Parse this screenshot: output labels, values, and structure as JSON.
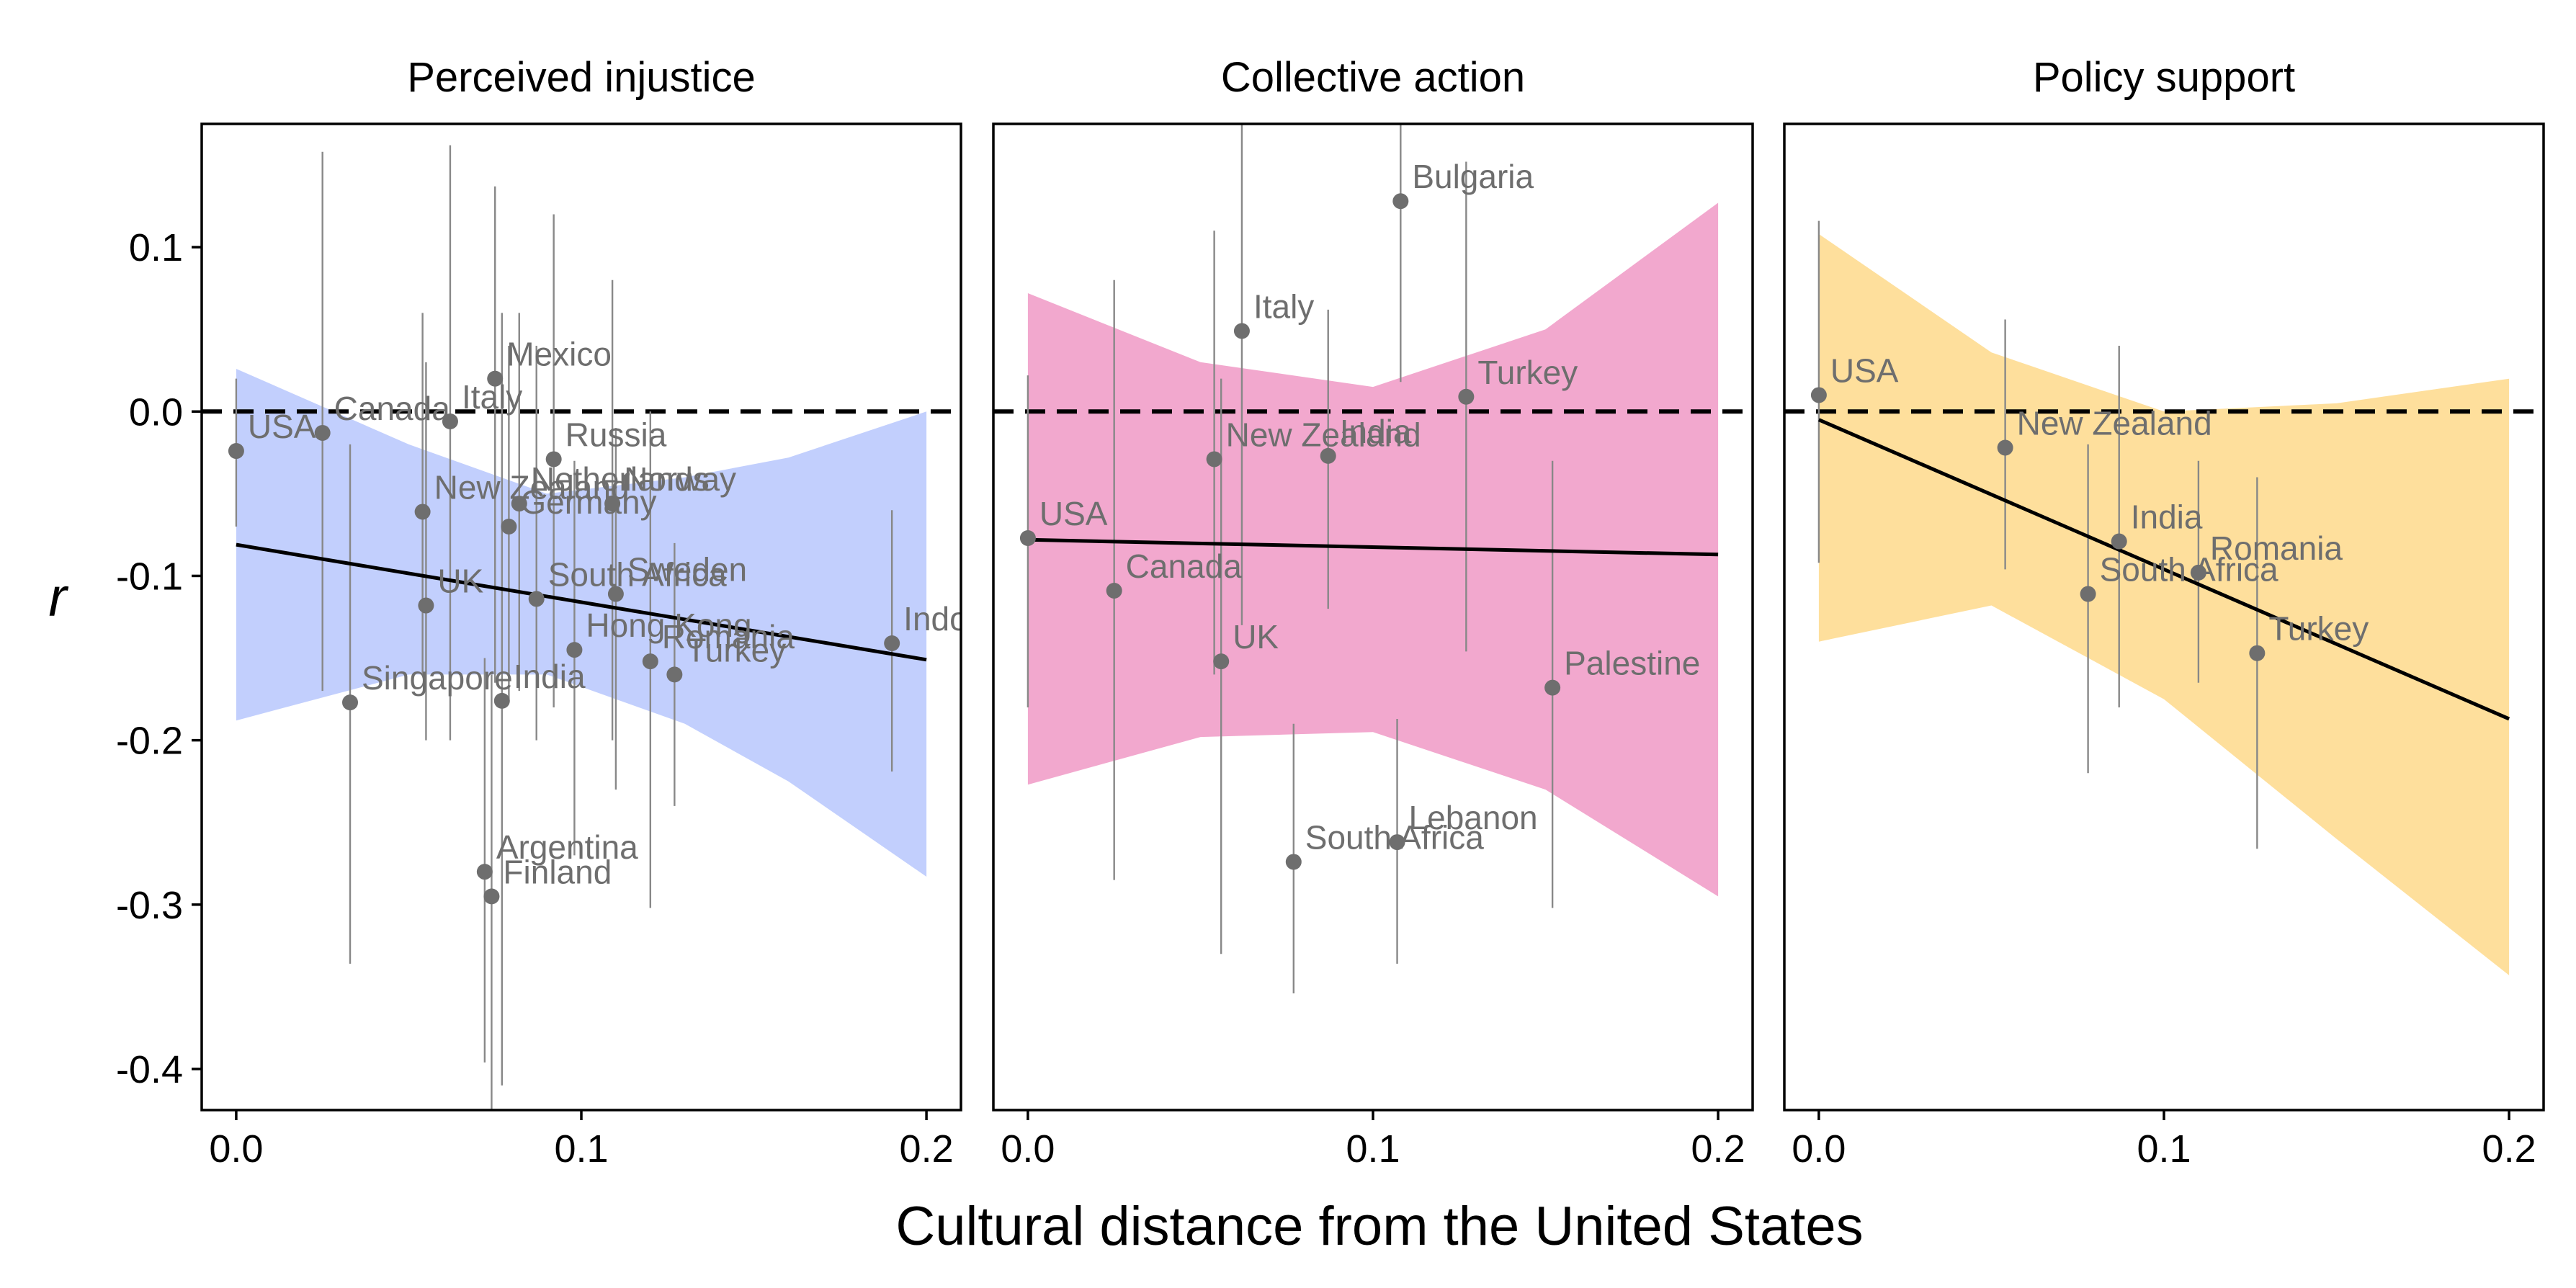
{
  "chart_data": {
    "type": "scatter",
    "xlabel": "Cultural distance from the United States",
    "ylabel": "r",
    "xlim": [
      -0.01,
      0.21
    ],
    "ylim": [
      -0.425,
      0.175
    ],
    "x_ticks": [
      0.0,
      0.1,
      0.2
    ],
    "x_tick_labels": [
      "0.0",
      "0.1",
      "0.2"
    ],
    "y_ticks": [
      0.1,
      0.0,
      -0.1,
      -0.2,
      -0.3,
      -0.4
    ],
    "y_tick_labels": [
      "0.1",
      "0.0",
      "-0.1",
      "-0.2",
      "-0.3",
      "-0.4"
    ],
    "reference_line": 0,
    "grid": false,
    "panels": [
      {
        "title": "Perceived injustice",
        "ribbon_color": "#c2cffd",
        "fit": {
          "x": [
            0,
            0.2
          ],
          "y": [
            -0.081,
            -0.151
          ]
        },
        "ribbon": [
          {
            "x": 0.0,
            "lo": -0.188,
            "hi": 0.026
          },
          {
            "x": 0.05,
            "lo": -0.16,
            "hi": -0.02
          },
          {
            "x": 0.09,
            "lo": -0.16,
            "hi": -0.05
          },
          {
            "x": 0.13,
            "lo": -0.19,
            "hi": -0.04
          },
          {
            "x": 0.16,
            "lo": -0.225,
            "hi": -0.028
          },
          {
            "x": 0.2,
            "lo": -0.283,
            "hi": 0.0
          }
        ],
        "points": [
          {
            "label": "USA",
            "x": 0.0,
            "y": -0.024,
            "lo": -0.07,
            "hi": 0.02
          },
          {
            "label": "Canada",
            "x": 0.025,
            "y": -0.013,
            "lo": -0.17,
            "hi": 0.158
          },
          {
            "label": "Singapore",
            "x": 0.033,
            "y": -0.177,
            "lo": -0.336,
            "hi": -0.02
          },
          {
            "label": "Italy",
            "x": 0.062,
            "y": -0.006,
            "lo": -0.2,
            "hi": 0.162
          },
          {
            "label": "New Zealand",
            "x": 0.054,
            "y": -0.061,
            "lo": -0.16,
            "hi": 0.06
          },
          {
            "label": "UK",
            "x": 0.055,
            "y": -0.118,
            "lo": -0.2,
            "hi": 0.03
          },
          {
            "label": "Mexico",
            "x": 0.075,
            "y": 0.02,
            "lo": -0.165,
            "hi": 0.137
          },
          {
            "label": "Germany",
            "x": 0.079,
            "y": -0.07,
            "lo": -0.175,
            "hi": 0.04
          },
          {
            "label": "Netherlands",
            "x": 0.082,
            "y": -0.056,
            "lo": -0.17,
            "hi": 0.06
          },
          {
            "label": "India",
            "x": 0.077,
            "y": -0.176,
            "lo": -0.41,
            "hi": 0.06
          },
          {
            "label": "South Africa",
            "x": 0.087,
            "y": -0.114,
            "lo": -0.2,
            "hi": 0.04
          },
          {
            "label": "Argentina",
            "x": 0.072,
            "y": -0.28,
            "lo": -0.396,
            "hi": -0.15
          },
          {
            "label": "Finland",
            "x": 0.074,
            "y": -0.295,
            "lo": -0.43,
            "hi": -0.16
          },
          {
            "label": "Russia",
            "x": 0.092,
            "y": -0.029,
            "lo": -0.18,
            "hi": 0.12
          },
          {
            "label": "Hong Kong",
            "x": 0.098,
            "y": -0.145,
            "lo": -0.27,
            "hi": -0.03
          },
          {
            "label": "Norway",
            "x": 0.109,
            "y": -0.056,
            "lo": -0.2,
            "hi": 0.08
          },
          {
            "label": "Sweden",
            "x": 0.11,
            "y": -0.111,
            "lo": -0.23,
            "hi": -0.01
          },
          {
            "label": "Romania",
            "x": 0.12,
            "y": -0.152,
            "lo": -0.302,
            "hi": 0.0
          },
          {
            "label": "Turkey",
            "x": 0.127,
            "y": -0.16,
            "lo": -0.24,
            "hi": -0.08
          },
          {
            "label": "Indonesia",
            "x": 0.19,
            "y": -0.141,
            "lo": -0.219,
            "hi": -0.06
          }
        ]
      },
      {
        "title": "Collective action",
        "ribbon_color": "#f2a8ce",
        "fit": {
          "x": [
            0,
            0.2
          ],
          "y": [
            -0.078,
            -0.087
          ]
        },
        "ribbon": [
          {
            "x": 0.0,
            "lo": -0.227,
            "hi": 0.072
          },
          {
            "x": 0.05,
            "lo": -0.198,
            "hi": 0.03
          },
          {
            "x": 0.1,
            "lo": -0.195,
            "hi": 0.015
          },
          {
            "x": 0.15,
            "lo": -0.23,
            "hi": 0.05
          },
          {
            "x": 0.2,
            "lo": -0.295,
            "hi": 0.127
          }
        ],
        "points": [
          {
            "label": "USA",
            "x": 0.0,
            "y": -0.077,
            "lo": -0.18,
            "hi": 0.022
          },
          {
            "label": "Canada",
            "x": 0.025,
            "y": -0.109,
            "lo": -0.285,
            "hi": 0.08
          },
          {
            "label": "New Zealand",
            "x": 0.054,
            "y": -0.029,
            "lo": -0.16,
            "hi": 0.11
          },
          {
            "label": "UK",
            "x": 0.056,
            "y": -0.152,
            "lo": -0.33,
            "hi": 0.02
          },
          {
            "label": "Italy",
            "x": 0.062,
            "y": 0.049,
            "lo": -0.13,
            "hi": 0.175
          },
          {
            "label": "South Africa",
            "x": 0.077,
            "y": -0.274,
            "lo": -0.354,
            "hi": -0.19
          },
          {
            "label": "India",
            "x": 0.087,
            "y": -0.027,
            "lo": -0.12,
            "hi": 0.062
          },
          {
            "label": "Lebanon",
            "x": 0.107,
            "y": -0.262,
            "lo": -0.336,
            "hi": -0.187
          },
          {
            "label": "Bulgaria",
            "x": 0.108,
            "y": 0.128,
            "lo": 0.018,
            "hi": 0.175
          },
          {
            "label": "Turkey",
            "x": 0.127,
            "y": 0.009,
            "lo": -0.146,
            "hi": 0.152
          },
          {
            "label": "Palestine",
            "x": 0.152,
            "y": -0.168,
            "lo": -0.302,
            "hi": -0.03
          }
        ]
      },
      {
        "title": "Policy support",
        "ribbon_color": "#fedf9c",
        "fit": {
          "x": [
            0,
            0.2
          ],
          "y": [
            -0.005,
            -0.187
          ]
        },
        "ribbon": [
          {
            "x": 0.0,
            "lo": -0.14,
            "hi": 0.108
          },
          {
            "x": 0.05,
            "lo": -0.118,
            "hi": 0.036
          },
          {
            "x": 0.1,
            "lo": -0.175,
            "hi": 0.0
          },
          {
            "x": 0.15,
            "lo": -0.26,
            "hi": 0.005
          },
          {
            "x": 0.2,
            "lo": -0.343,
            "hi": 0.02
          }
        ],
        "points": [
          {
            "label": "USA",
            "x": 0.0,
            "y": 0.01,
            "lo": -0.092,
            "hi": 0.116
          },
          {
            "label": "New Zealand",
            "x": 0.054,
            "y": -0.022,
            "lo": -0.096,
            "hi": 0.056
          },
          {
            "label": "South Africa",
            "x": 0.078,
            "y": -0.111,
            "lo": -0.22,
            "hi": -0.02
          },
          {
            "label": "India",
            "x": 0.087,
            "y": -0.079,
            "lo": -0.18,
            "hi": 0.04
          },
          {
            "label": "Romania",
            "x": 0.11,
            "y": -0.098,
            "lo": -0.165,
            "hi": -0.03
          },
          {
            "label": "Turkey",
            "x": 0.127,
            "y": -0.147,
            "lo": -0.266,
            "hi": -0.04
          }
        ]
      }
    ]
  }
}
